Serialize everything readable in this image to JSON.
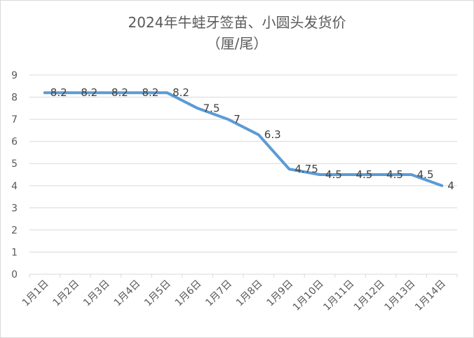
{
  "chart_data": {
    "type": "line",
    "title_line1": "2024年牛蛙牙签苗、小圆头发货价",
    "title_line2": "（厘/尾）",
    "categories": [
      "1月1日",
      "1月2日",
      "1月3日",
      "1月4日",
      "1月5日",
      "1月6日",
      "1月7日",
      "1月8日",
      "1月9日",
      "1月10日",
      "1月11日",
      "1月12日",
      "1月13日",
      "1月14日"
    ],
    "values": [
      8.2,
      8.2,
      8.2,
      8.2,
      8.2,
      7.5,
      7,
      6.3,
      4.75,
      4.5,
      4.5,
      4.5,
      4.5,
      4
    ],
    "value_labels": [
      "8.2",
      "8.2",
      "8.2",
      "8.2",
      "8.2",
      "7.5",
      "7",
      "6.3",
      "4.75",
      "4.5",
      "4.5",
      "4.5",
      "4.5",
      "4"
    ],
    "y_ticks": [
      "0",
      "1",
      "2",
      "3",
      "4",
      "5",
      "6",
      "7",
      "8",
      "9"
    ],
    "ylim": [
      0,
      9
    ],
    "grid": true,
    "series_color": "#5b9bd5"
  }
}
